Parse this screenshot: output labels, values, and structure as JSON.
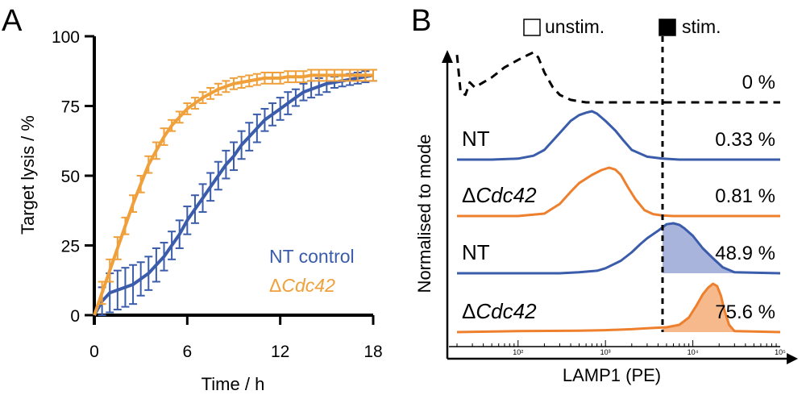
{
  "colors": {
    "nt": "#3a5caa",
    "cdc42": "#f0a03a",
    "cdc42_hist": "#ee7f2d",
    "axis": "#000000"
  },
  "chart_data": [
    {
      "panel": "A",
      "type": "line",
      "xlabel": "Time / h",
      "ylabel": "Target lysis / %",
      "xlim": [
        0,
        18
      ],
      "ylim": [
        0,
        100
      ],
      "xticks": [
        "0",
        "6",
        "12",
        "18"
      ],
      "yticks": [
        "0",
        "25",
        "50",
        "75",
        "100"
      ],
      "legend": {
        "placement": "bottom-right",
        "nt": "NT control",
        "cdc42_prefix": "Δ",
        "cdc42_gene": "Cdc42"
      },
      "series": [
        {
          "name": "NT control",
          "x": [
            0,
            0.5,
            1,
            1.5,
            2,
            2.5,
            3,
            3.5,
            4,
            4.5,
            5,
            5.5,
            6,
            6.5,
            7,
            7.5,
            8,
            8.5,
            9,
            9.5,
            10,
            10.5,
            11,
            11.5,
            12,
            12.5,
            13,
            13.5,
            14,
            14.5,
            15,
            15.5,
            16,
            16.5,
            17,
            17.5,
            18
          ],
          "values": [
            0,
            5,
            8,
            9,
            10,
            11,
            13,
            15,
            18,
            21,
            25,
            29,
            34,
            38,
            42,
            46,
            50,
            54,
            57,
            61,
            64,
            67,
            70,
            72,
            74,
            76,
            78,
            80,
            81,
            82,
            83,
            83.5,
            84,
            84.5,
            85,
            85.5,
            86
          ],
          "error": [
            0,
            5,
            7,
            7,
            7,
            7,
            6,
            6,
            6,
            5,
            5,
            5,
            5,
            5,
            5,
            5,
            5,
            5,
            5,
            5,
            5,
            5,
            4,
            4,
            4,
            4,
            3,
            3,
            3,
            3,
            3,
            2,
            2,
            2,
            2,
            2,
            2
          ]
        },
        {
          "name": "ΔCdc42",
          "x": [
            0,
            0.5,
            1,
            1.5,
            2,
            2.5,
            3,
            3.5,
            4,
            4.5,
            5,
            5.5,
            6,
            6.5,
            7,
            7.5,
            8,
            8.5,
            9,
            9.5,
            10,
            10.5,
            11,
            11.5,
            12,
            12.5,
            13,
            13.5,
            14,
            14.5,
            15,
            15.5,
            16,
            16.5,
            17,
            17.5,
            18
          ],
          "values": [
            0,
            8,
            16,
            24,
            32,
            40,
            47,
            54,
            59,
            64,
            68,
            71,
            74,
            76,
            78,
            79.5,
            81,
            82,
            83,
            83.5,
            84,
            84.5,
            85,
            85,
            85,
            85.5,
            85.5,
            85.5,
            86,
            86,
            86,
            86,
            86,
            86,
            86,
            86,
            86
          ],
          "error": [
            0,
            4,
            4,
            4,
            3,
            3,
            3,
            3,
            3,
            3,
            2,
            2,
            2,
            2,
            2,
            2,
            2,
            2,
            2,
            2,
            2,
            2,
            2,
            2,
            2,
            2,
            2,
            2,
            2,
            2,
            2,
            2,
            2,
            2,
            2,
            2,
            2
          ]
        }
      ]
    },
    {
      "panel": "B",
      "type": "histogram",
      "xlabel": "LAMP1 (PE)",
      "ylabel": "Normalised to mode",
      "xscale": "log",
      "xlim": [
        20,
        100000
      ],
      "xticks": [
        "10²",
        "10³",
        "10⁴",
        "10⁵"
      ],
      "xtick_values": [
        100,
        1000,
        10000,
        100000
      ],
      "gate": 4500,
      "legend": {
        "placement": "top",
        "unstim": "unstim.",
        "stim": "stim."
      },
      "tracks": [
        {
          "label": "",
          "label_prefix": "",
          "label_gene": "",
          "percent": "0 %",
          "style": "dashed",
          "x": [
            20,
            22,
            25,
            28,
            32,
            40,
            50,
            70,
            100,
            130,
            150,
            170,
            200,
            250,
            300,
            400,
            600,
            1000,
            100000
          ],
          "y": [
            0.95,
            0.2,
            0.15,
            0.4,
            0.3,
            0.4,
            0.5,
            0.7,
            0.85,
            0.95,
            1.0,
            0.9,
            0.6,
            0.3,
            0.15,
            0.05,
            0,
            0,
            0
          ]
        },
        {
          "label": "NT",
          "label_prefix": "",
          "label_gene": "",
          "percent": "0.33 %",
          "style": "blue-line",
          "x": [
            20,
            50,
            100,
            150,
            200,
            300,
            400,
            500,
            600,
            700,
            800,
            1000,
            1300,
            1600,
            2000,
            3000,
            4500,
            7000,
            100000
          ],
          "y": [
            0,
            0,
            0.02,
            0.08,
            0.2,
            0.55,
            0.8,
            0.92,
            0.97,
            1.0,
            0.95,
            0.8,
            0.6,
            0.4,
            0.2,
            0.06,
            0.02,
            0,
            0
          ]
        },
        {
          "label": "",
          "label_prefix": "Δ",
          "label_gene": "Cdc42",
          "percent": "0.81 %",
          "style": "orange-line",
          "x": [
            20,
            100,
            200,
            300,
            400,
            500,
            700,
            900,
            1100,
            1300,
            1500,
            1800,
            2200,
            2800,
            3500,
            4500,
            6000,
            100000
          ],
          "y": [
            0,
            0,
            0.05,
            0.25,
            0.5,
            0.68,
            0.85,
            0.95,
            1.0,
            0.96,
            0.85,
            0.6,
            0.35,
            0.12,
            0.04,
            0.01,
            0,
            0
          ]
        },
        {
          "label": "NT",
          "label_prefix": "",
          "label_gene": "",
          "percent": "48.9 %",
          "style": "blue-fill",
          "x": [
            20,
            300,
            500,
            800,
            1000,
            1500,
            2000,
            2500,
            3000,
            4000,
            5000,
            6000,
            7000,
            8000,
            10000,
            13000,
            17000,
            22000,
            30000,
            100000
          ],
          "y": [
            0,
            0,
            0.02,
            0.05,
            0.1,
            0.25,
            0.42,
            0.58,
            0.7,
            0.85,
            0.98,
            1.0,
            0.97,
            0.9,
            0.75,
            0.5,
            0.3,
            0.12,
            0.02,
            0
          ]
        },
        {
          "label": "",
          "label_prefix": "Δ",
          "label_gene": "Cdc42",
          "percent": "75.6 %",
          "style": "orange-fill",
          "x": [
            20,
            100,
            500,
            1000,
            2000,
            3000,
            5000,
            7000,
            9000,
            11000,
            13000,
            15000,
            17000,
            19000,
            21000,
            23000,
            26000,
            30000,
            100000
          ],
          "y": [
            0,
            0.02,
            0.03,
            0.04,
            0.06,
            0.08,
            0.1,
            0.15,
            0.3,
            0.55,
            0.78,
            0.92,
            1.0,
            0.95,
            0.75,
            0.45,
            0.15,
            0.02,
            0
          ]
        }
      ]
    }
  ]
}
